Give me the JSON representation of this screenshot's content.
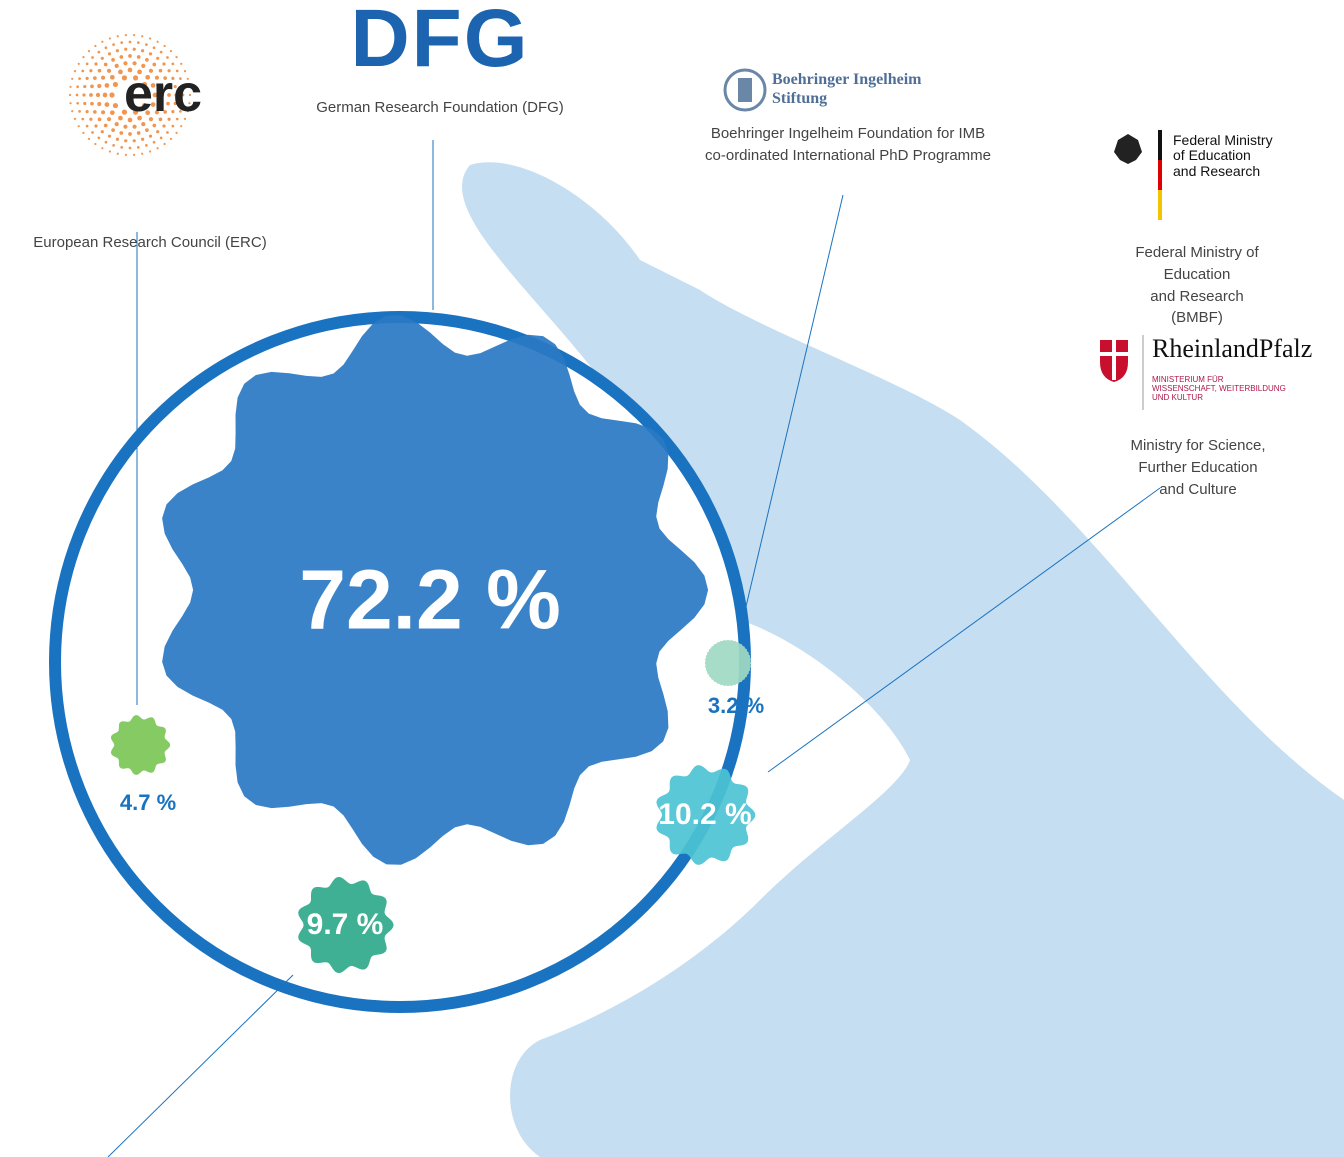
{
  "chart_data": {
    "type": "bubble",
    "categories": [
      "European Research Council (ERC)",
      "German Research Foundation (DFG)",
      "Boehringer Ingelheim Foundation for IMB\nco-ordinated International PhD Programme",
      "Ministry for Science, Further Education\nand Culture",
      null
    ],
    "values": [
      4.7,
      72.2,
      3.2,
      10.2,
      9.7
    ],
    "value_labels": [
      "4.7 %",
      "72.2 %",
      "3.2 %",
      "10.2 %",
      "9.7 %"
    ],
    "colors": [
      "#7cc557",
      "#2a78c4",
      "#9fd9c3",
      "#4cc3d3",
      "#2fa98a"
    ],
    "other_labels": [
      "Federal Ministry of Education\nand Research (BMBF)"
    ],
    "logos": {
      "erc": "erc",
      "dfg": "DFG",
      "boehringer": "Boehringer Ingelheim\nStiftung",
      "bmbf": "Federal Ministry\nof Education\nand Research",
      "rlp": "RheinlandPfalz",
      "rlp_sub": "MINISTERIUM FÜR\nWISSENSCHAFT, WEITERBILDUNG\nUND KULTUR"
    }
  }
}
